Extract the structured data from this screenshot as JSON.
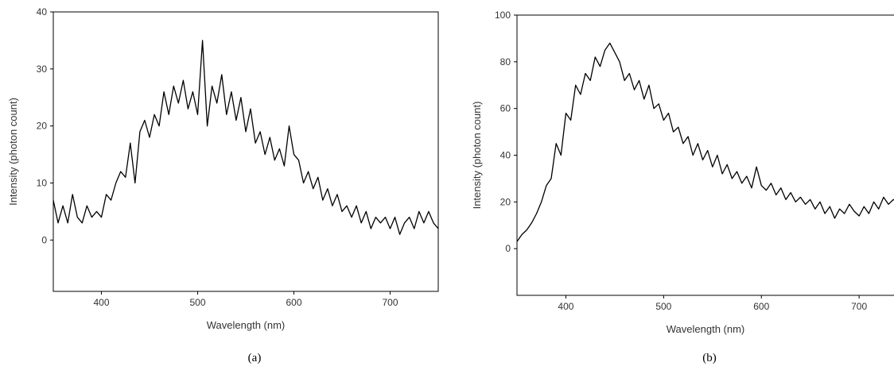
{
  "chart_data": [
    {
      "type": "line",
      "caption": "(a)",
      "xlabel": "Wavelength (nm)",
      "ylabel": "Intensity (photon count)",
      "color": "#000000",
      "x": [
        350,
        355,
        360,
        365,
        370,
        375,
        380,
        385,
        390,
        395,
        400,
        405,
        410,
        415,
        420,
        425,
        430,
        435,
        440,
        445,
        450,
        455,
        460,
        465,
        470,
        475,
        480,
        485,
        490,
        495,
        500,
        505,
        510,
        515,
        520,
        525,
        530,
        535,
        540,
        545,
        550,
        555,
        560,
        565,
        570,
        575,
        580,
        585,
        590,
        595,
        600,
        605,
        610,
        615,
        620,
        625,
        630,
        635,
        640,
        645,
        650,
        655,
        660,
        665,
        670,
        675,
        680,
        685,
        690,
        695,
        700,
        705,
        710,
        715,
        720,
        725,
        730,
        735,
        740,
        745,
        750
      ],
      "values": [
        7,
        3,
        6,
        3,
        8,
        4,
        3,
        6,
        4,
        5,
        4,
        8,
        7,
        10,
        12,
        11,
        17,
        10,
        19,
        21,
        18,
        22,
        20,
        26,
        22,
        27,
        24,
        28,
        23,
        26,
        22,
        35,
        20,
        27,
        24,
        29,
        22,
        26,
        21,
        25,
        19,
        23,
        17,
        19,
        15,
        18,
        14,
        16,
        13,
        20,
        15,
        14,
        10,
        12,
        9,
        11,
        7,
        9,
        6,
        8,
        5,
        6,
        4,
        6,
        3,
        5,
        2,
        4,
        3,
        4,
        2,
        4,
        1,
        3,
        4,
        2,
        5,
        3,
        5,
        3,
        2
      ],
      "xlim": [
        350,
        750
      ],
      "ylim": [
        -9,
        40
      ],
      "xticks": [
        400,
        500,
        600,
        700
      ],
      "yticks": [
        0,
        10,
        20,
        30,
        40
      ]
    },
    {
      "type": "line",
      "caption": "(b)",
      "xlabel": "Wavelength (nm)",
      "ylabel": "Intensity (photon count)",
      "color": "#000000",
      "x": [
        350,
        355,
        360,
        365,
        370,
        375,
        380,
        385,
        390,
        395,
        400,
        405,
        410,
        415,
        420,
        425,
        430,
        435,
        440,
        445,
        450,
        455,
        460,
        465,
        470,
        475,
        480,
        485,
        490,
        495,
        500,
        505,
        510,
        515,
        520,
        525,
        530,
        535,
        540,
        545,
        550,
        555,
        560,
        565,
        570,
        575,
        580,
        585,
        590,
        595,
        600,
        605,
        610,
        615,
        620,
        625,
        630,
        635,
        640,
        645,
        650,
        655,
        660,
        665,
        670,
        675,
        680,
        685,
        690,
        695,
        700,
        705,
        710,
        715,
        720,
        725,
        730,
        735,
        740
      ],
      "values": [
        3,
        6,
        8,
        11,
        15,
        20,
        27,
        30,
        45,
        40,
        58,
        55,
        70,
        66,
        75,
        72,
        82,
        78,
        85,
        88,
        84,
        80,
        72,
        75,
        68,
        72,
        64,
        70,
        60,
        62,
        55,
        58,
        50,
        52,
        45,
        48,
        40,
        45,
        38,
        42,
        35,
        40,
        32,
        36,
        30,
        33,
        28,
        31,
        26,
        35,
        27,
        25,
        28,
        23,
        26,
        21,
        24,
        20,
        22,
        19,
        21,
        17,
        20,
        15,
        18,
        13,
        17,
        15,
        19,
        16,
        14,
        18,
        15,
        20,
        17,
        22,
        19,
        21,
        20
      ],
      "xlim": [
        350,
        743
      ],
      "ylim": [
        -20,
        100
      ],
      "xticks": [
        400,
        500,
        600,
        700
      ],
      "yticks": [
        0,
        20,
        40,
        60,
        80,
        100
      ]
    }
  ]
}
